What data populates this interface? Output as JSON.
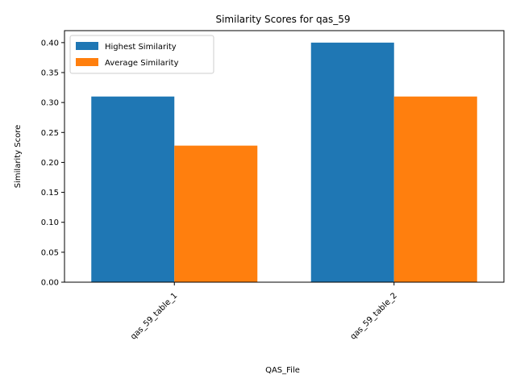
{
  "chart_data": {
    "type": "bar",
    "title": "Similarity Scores for qas_59",
    "xlabel": "QAS_File",
    "ylabel": "Similarity Score",
    "categories": [
      "qas_59_table_1",
      "qas_59_table_2"
    ],
    "series": [
      {
        "name": "Highest Similarity",
        "values": [
          0.31,
          0.4
        ],
        "color": "#1f77b4"
      },
      {
        "name": "Average Similarity",
        "values": [
          0.228,
          0.31
        ],
        "color": "#ff7f0e"
      }
    ],
    "ylim": [
      0,
      0.42
    ],
    "yticks": [
      "0.00",
      "0.05",
      "0.10",
      "0.15",
      "0.20",
      "0.25",
      "0.30",
      "0.35",
      "0.40"
    ],
    "grid": false,
    "legend_position": "top-left"
  }
}
